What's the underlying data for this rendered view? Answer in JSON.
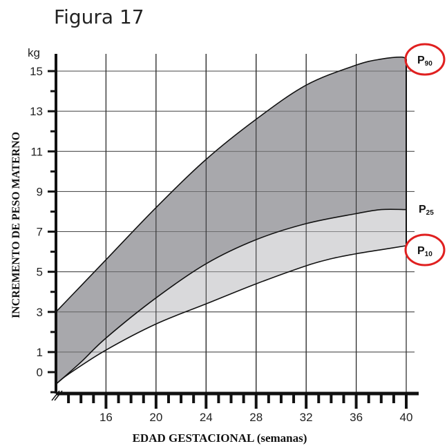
{
  "figure_title": "Figura 17",
  "chart_data": {
    "type": "area",
    "ylabel": "INCREMENTO DE PESO MATERNO",
    "xlabel": "EDAD GESTACIONAL (semanas)",
    "y_unit": "kg",
    "xlim": [
      12,
      40
    ],
    "ylim": [
      -1,
      15.5
    ],
    "x_ticks": [
      16,
      20,
      24,
      28,
      32,
      36,
      40
    ],
    "y_ticks": [
      0,
      1,
      3,
      5,
      7,
      9,
      11,
      13,
      15
    ],
    "grid": true,
    "series": [
      {
        "name": "P90",
        "label_main": "P",
        "label_sub": "90",
        "x": [
          12,
          14,
          16,
          20,
          24,
          28,
          32,
          36,
          38,
          39.6,
          40
        ],
        "y": [
          3.0,
          4.3,
          5.6,
          8.2,
          10.6,
          12.6,
          14.3,
          15.3,
          15.6,
          15.7,
          15.6
        ]
      },
      {
        "name": "P25",
        "label_main": "P",
        "label_sub": "25",
        "x": [
          12,
          14,
          16,
          20,
          24,
          28,
          32,
          36,
          38,
          40
        ],
        "y": [
          -0.6,
          0.5,
          1.7,
          3.7,
          5.4,
          6.6,
          7.4,
          7.9,
          8.1,
          8.1
        ]
      },
      {
        "name": "P10",
        "label_main": "P",
        "label_sub": "10",
        "x": [
          12,
          13,
          16,
          20,
          24,
          28,
          32,
          34,
          36,
          38,
          40
        ],
        "y": [
          -0.6,
          -0.1,
          1.1,
          2.4,
          3.4,
          4.4,
          5.3,
          5.65,
          5.9,
          6.1,
          6.3
        ]
      }
    ],
    "fill_colors": {
      "outer": "#a8a8ac",
      "inner": "#d9d9db"
    },
    "highlight_color": "#e02020"
  }
}
